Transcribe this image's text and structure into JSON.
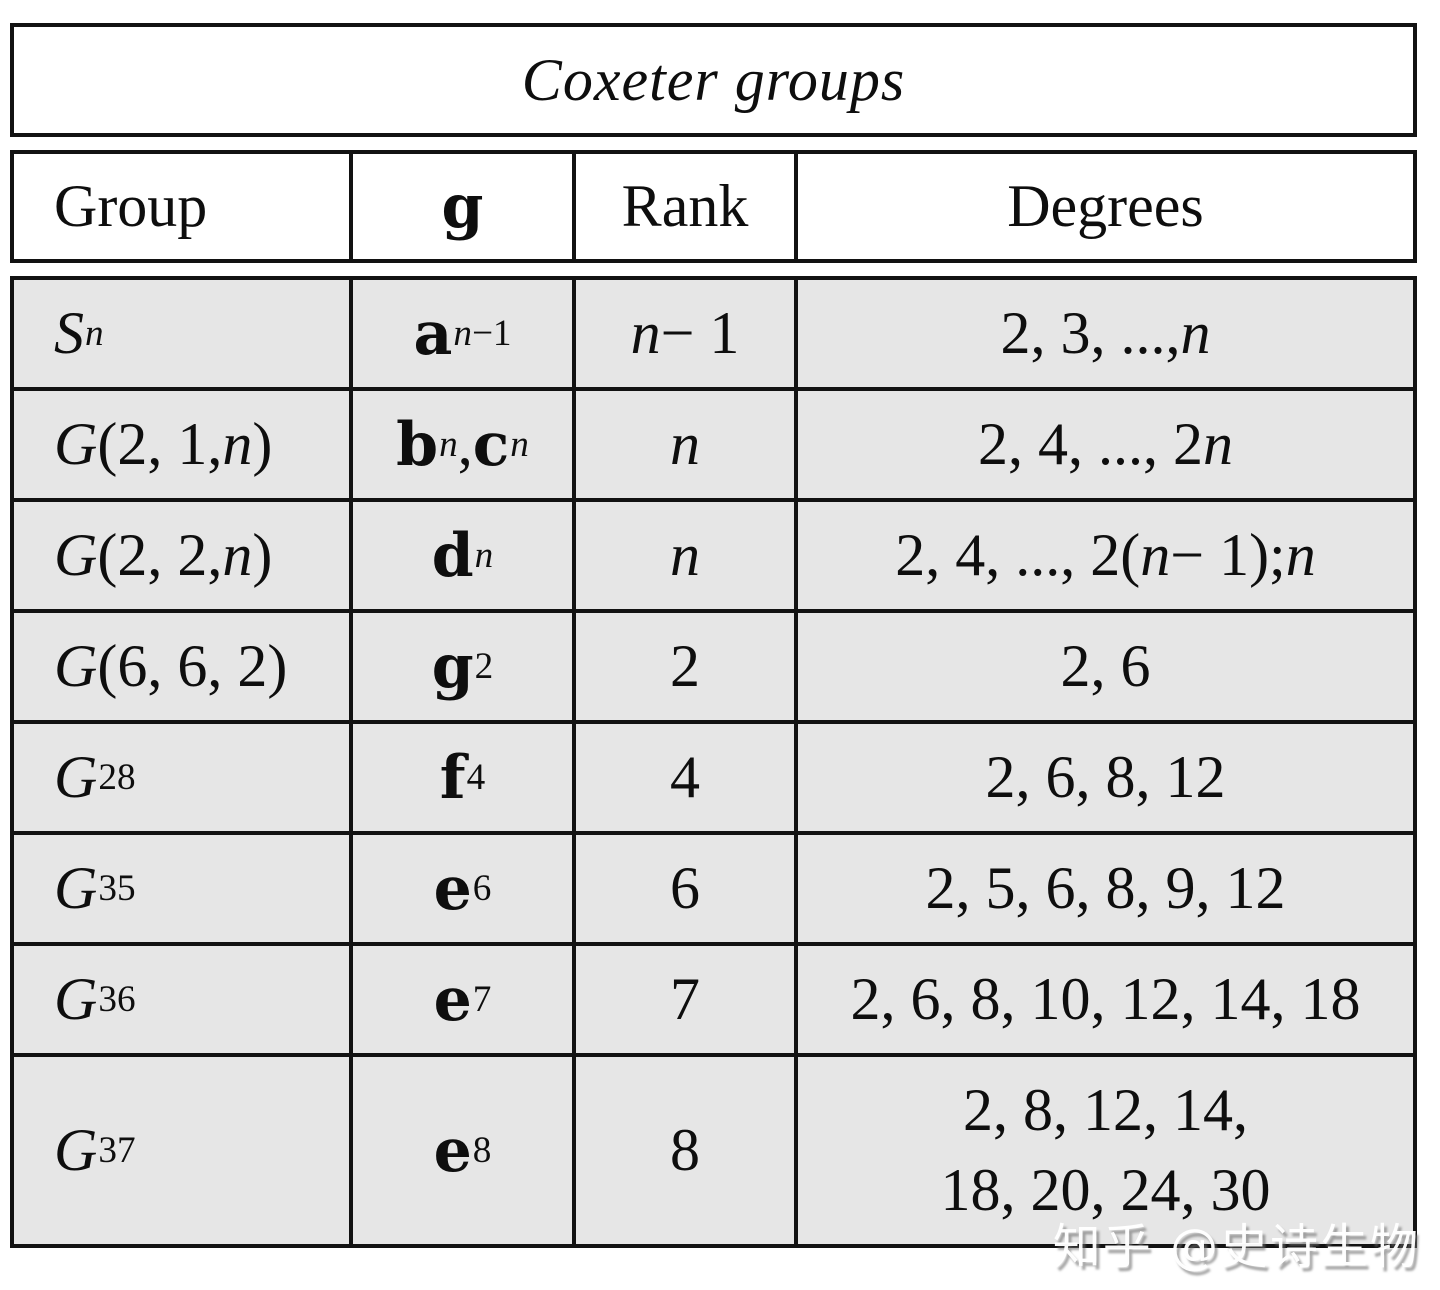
{
  "title": "Coxeter groups",
  "header": {
    "group": "Group",
    "algebra_glyph": "𝔤",
    "algebra_latin": "g",
    "rank": "Rank",
    "degrees": "Degrees"
  },
  "rows": [
    {
      "group": "S_{n}",
      "algebra": [
        {
          "glyph": "𝔞",
          "latin": "a",
          "sub": "n−1"
        }
      ],
      "rank": "n − 1",
      "degrees": "2, 3, ..., n"
    },
    {
      "group": "G(2, 1, n)",
      "algebra": [
        {
          "glyph": "𝔟",
          "latin": "b",
          "sub": "n"
        },
        {
          "glyph": "𝔠",
          "latin": "c",
          "sub": "n"
        }
      ],
      "rank": "n",
      "degrees": "2, 4, ..., 2n"
    },
    {
      "group": "G(2, 2, n)",
      "algebra": [
        {
          "glyph": "𝔡",
          "latin": "d",
          "sub": "n"
        }
      ],
      "rank": "n",
      "degrees": "2, 4, ..., 2(n − 1); n"
    },
    {
      "group": "G(6, 6, 2)",
      "algebra": [
        {
          "glyph": "𝔤",
          "latin": "g",
          "sub": "2"
        }
      ],
      "rank": "2",
      "degrees": "2, 6"
    },
    {
      "group": "G_{28}",
      "algebra": [
        {
          "glyph": "𝔣",
          "latin": "f",
          "sub": "4"
        }
      ],
      "rank": "4",
      "degrees": "2, 6, 8, 12"
    },
    {
      "group": "G_{35}",
      "algebra": [
        {
          "glyph": "𝔢",
          "latin": "e",
          "sub": "6"
        }
      ],
      "rank": "6",
      "degrees": "2, 5, 6, 8, 9, 12"
    },
    {
      "group": "G_{36}",
      "algebra": [
        {
          "glyph": "𝔢",
          "latin": "e",
          "sub": "7"
        }
      ],
      "rank": "7",
      "degrees": "2, 6, 8, 10, 12, 14, 18"
    },
    {
      "group": "G_{37}",
      "algebra": [
        {
          "glyph": "𝔢",
          "latin": "e",
          "sub": "8"
        }
      ],
      "rank": "8",
      "degrees": "2, 8, 12, 14,\n18, 20, 24, 30"
    }
  ],
  "watermark": "知乎 @史诗生物",
  "colors": {
    "border": "#121212",
    "row_bg": "#e6e6e6",
    "text": "#0e0e0e",
    "watermark_text": "#ffffff"
  }
}
